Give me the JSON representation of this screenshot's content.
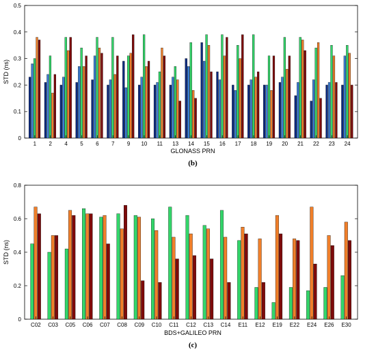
{
  "colors": {
    "navy": "#0b2a80",
    "blue": "#3a7fd5",
    "green": "#33d66a",
    "orange": "#f07f2a",
    "darkred": "#7e0a0a"
  },
  "chart_data": [
    {
      "type": "bar",
      "panel_label": "(b)",
      "xlabel": "GLONASS PRN",
      "ylabel": "STD (ns)",
      "ylim": [
        0,
        0.5
      ],
      "yticks": [
        "0",
        "0.1",
        "0.2",
        "0.3",
        "0.4",
        "0.5"
      ],
      "grid": false,
      "categories": [
        "1",
        "2",
        "4",
        "5",
        "6",
        "7",
        "9",
        "10",
        "11",
        "13",
        "14",
        "15",
        "16",
        "17",
        "18",
        "19",
        "20",
        "21",
        "22",
        "23",
        "24"
      ],
      "series": [
        {
          "color": "navy",
          "values": [
            0.23,
            0.21,
            0.2,
            0.21,
            0.22,
            0.2,
            0.29,
            0.2,
            0.2,
            0.2,
            0.3,
            0.36,
            0.25,
            0.2,
            0.2,
            0.2,
            0.21,
            0.16,
            0.14,
            0.2,
            0.2
          ]
        },
        {
          "color": "blue",
          "values": [
            0.28,
            0.24,
            0.23,
            0.27,
            0.31,
            0.22,
            0.19,
            0.23,
            0.21,
            0.23,
            0.27,
            0.29,
            0.22,
            0.18,
            0.22,
            0.2,
            0.23,
            0.21,
            0.22,
            0.21,
            0.31
          ]
        },
        {
          "color": "green",
          "values": [
            0.3,
            0.31,
            0.38,
            0.34,
            0.38,
            0.38,
            0.31,
            0.39,
            0.25,
            0.27,
            0.36,
            0.39,
            0.39,
            0.35,
            0.39,
            0.31,
            0.38,
            0.38,
            0.34,
            0.35,
            0.35
          ]
        },
        {
          "color": "orange",
          "values": [
            0.38,
            0.17,
            0.33,
            0.27,
            0.34,
            0.24,
            0.32,
            0.27,
            0.34,
            0.22,
            0.18,
            0.35,
            0.31,
            0.3,
            0.23,
            0.18,
            0.26,
            0.37,
            0.36,
            0.31,
            0.32
          ]
        },
        {
          "color": "darkred",
          "values": [
            0.37,
            0.24,
            0.38,
            0.31,
            0.32,
            0.31,
            0.39,
            0.29,
            0.31,
            0.14,
            0.15,
            0.25,
            0.38,
            0.39,
            0.25,
            0.31,
            0.31,
            0.33,
            0.15,
            0.21,
            0.2
          ]
        }
      ]
    },
    {
      "type": "bar",
      "panel_label": "(c)",
      "xlabel": "BDS+GALILEO PRN",
      "ylabel": "STD (ns)",
      "ylim": [
        0,
        0.8
      ],
      "yticks": [
        "0",
        "0.2",
        "0.4",
        "0.6",
        "0.8"
      ],
      "grid": false,
      "categories": [
        "C02",
        "C03",
        "C05",
        "C06",
        "C07",
        "C08",
        "C09",
        "C10",
        "C11",
        "C12",
        "C13",
        "C14",
        "E11",
        "E12",
        "E19",
        "E22",
        "E24",
        "E26",
        "E30"
      ],
      "series": [
        {
          "color": "green",
          "values": [
            0.45,
            0.4,
            0.42,
            0.66,
            0.61,
            0.63,
            0.62,
            0.6,
            0.67,
            0.62,
            0.56,
            0.65,
            0.47,
            0.19,
            0.1,
            0.19,
            0.17,
            0.19,
            0.26
          ]
        },
        {
          "color": "orange",
          "values": [
            0.67,
            0.5,
            0.65,
            0.63,
            0.62,
            0.54,
            0.61,
            0.53,
            0.49,
            0.51,
            0.54,
            0.49,
            0.55,
            0.48,
            0.62,
            0.48,
            0.67,
            0.5,
            0.58
          ]
        },
        {
          "color": "darkred",
          "values": [
            0.63,
            0.5,
            0.62,
            0.63,
            0.45,
            0.68,
            0.23,
            0.22,
            0.36,
            0.38,
            0.36,
            0.22,
            0.51,
            0.22,
            0.51,
            0.47,
            0.33,
            0.44,
            0.47
          ]
        }
      ]
    }
  ]
}
